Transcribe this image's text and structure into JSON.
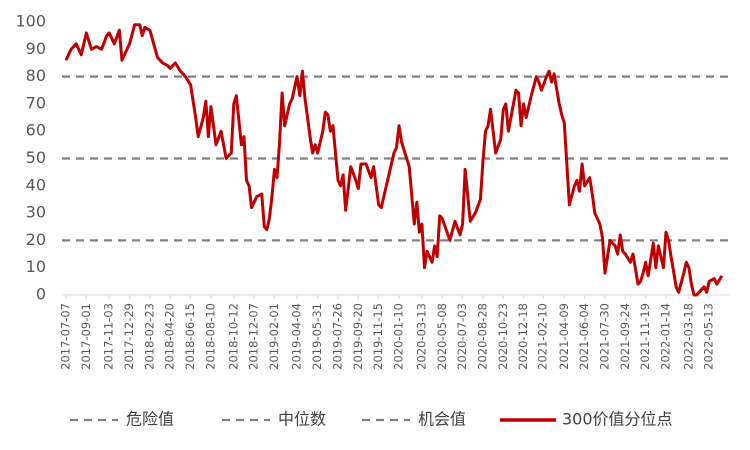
{
  "chart_data": {
    "type": "line",
    "x": [
      "2017-07-07",
      "2017-07-21",
      "2017-08-04",
      "2017-08-18",
      "2017-09-01",
      "2017-09-15",
      "2017-09-29",
      "2017-10-13",
      "2017-10-27",
      "2017-11-03",
      "2017-11-17",
      "2017-12-01",
      "2017-12-08",
      "2017-12-29",
      "2018-01-12",
      "2018-01-26",
      "2018-02-02",
      "2018-02-09",
      "2018-02-23",
      "2018-03-16",
      "2018-03-30",
      "2018-04-13",
      "2018-04-20",
      "2018-05-04",
      "2018-05-18",
      "2018-06-01",
      "2018-06-15",
      "2018-06-29",
      "2018-07-06",
      "2018-07-20",
      "2018-07-27",
      "2018-08-03",
      "2018-08-10",
      "2018-08-24",
      "2018-09-07",
      "2018-09-21",
      "2018-10-05",
      "2018-10-12",
      "2018-10-19",
      "2018-11-02",
      "2018-11-09",
      "2018-11-16",
      "2018-11-23",
      "2018-11-30",
      "2018-12-14",
      "2018-12-28",
      "2019-01-04",
      "2019-01-11",
      "2019-01-18",
      "2019-01-25",
      "2019-02-01",
      "2019-02-08",
      "2019-02-15",
      "2019-02-22",
      "2019-03-01",
      "2019-03-15",
      "2019-03-22",
      "2019-04-04",
      "2019-04-12",
      "2019-04-19",
      "2019-04-26",
      "2019-05-10",
      "2019-05-17",
      "2019-05-24",
      "2019-05-31",
      "2019-06-14",
      "2019-06-21",
      "2019-06-28",
      "2019-07-05",
      "2019-07-12",
      "2019-07-26",
      "2019-08-02",
      "2019-08-09",
      "2019-08-16",
      "2019-08-30",
      "2019-09-13",
      "2019-09-20",
      "2019-09-27",
      "2019-10-11",
      "2019-10-25",
      "2019-11-01",
      "2019-11-15",
      "2019-11-22",
      "2019-11-29",
      "2019-12-13",
      "2019-12-27",
      "2020-01-03",
      "2020-01-10",
      "2020-01-17",
      "2020-02-07",
      "2020-02-21",
      "2020-02-28",
      "2020-03-06",
      "2020-03-13",
      "2020-03-20",
      "2020-03-27",
      "2020-04-10",
      "2020-04-17",
      "2020-04-24",
      "2020-05-01",
      "2020-05-08",
      "2020-05-29",
      "2020-06-12",
      "2020-06-26",
      "2020-07-03",
      "2020-07-10",
      "2020-07-24",
      "2020-08-07",
      "2020-08-21",
      "2020-08-28",
      "2020-09-04",
      "2020-09-11",
      "2020-09-18",
      "2020-10-02",
      "2020-10-16",
      "2020-10-23",
      "2020-10-30",
      "2020-11-06",
      "2020-11-27",
      "2020-12-04",
      "2020-12-11",
      "2020-12-18",
      "2020-12-25",
      "2021-01-08",
      "2021-01-22",
      "2021-01-29",
      "2021-02-05",
      "2021-02-19",
      "2021-02-26",
      "2021-03-05",
      "2021-03-12",
      "2021-03-26",
      "2021-04-02",
      "2021-04-09",
      "2021-04-23",
      "2021-05-07",
      "2021-05-14",
      "2021-05-21",
      "2021-05-28",
      "2021-06-04",
      "2021-06-18",
      "2021-06-25",
      "2021-07-02",
      "2021-07-16",
      "2021-07-23",
      "2021-07-30",
      "2021-08-06",
      "2021-08-13",
      "2021-08-27",
      "2021-09-03",
      "2021-09-10",
      "2021-09-17",
      "2021-09-24",
      "2021-10-08",
      "2021-10-15",
      "2021-10-29",
      "2021-11-05",
      "2021-11-12",
      "2021-11-19",
      "2021-11-26",
      "2021-12-03",
      "2021-12-10",
      "2021-12-17",
      "2021-12-24",
      "2022-01-07",
      "2022-01-14",
      "2022-01-21",
      "2022-01-28",
      "2022-02-11",
      "2022-02-18",
      "2022-03-04",
      "2022-03-11",
      "2022-03-18",
      "2022-03-25",
      "2022-04-01",
      "2022-04-08",
      "2022-04-22",
      "2022-04-29",
      "2022-05-06",
      "2022-05-13",
      "2022-05-27",
      "2022-06-03",
      "2022-06-17"
    ],
    "series": [
      {
        "name": "300价值分位点",
        "color": "#c00000",
        "values": [
          86,
          90,
          92,
          88,
          96,
          90,
          91,
          90,
          95,
          96,
          92,
          97,
          86,
          92,
          99,
          99,
          95,
          98,
          97,
          87,
          85,
          84,
          83,
          85,
          82,
          80,
          77,
          65,
          58,
          65,
          71,
          58,
          69,
          55,
          60,
          50,
          52,
          70,
          73,
          55,
          58,
          42,
          40,
          32,
          36,
          37,
          25,
          24,
          28,
          36,
          46,
          43,
          56,
          74,
          62,
          70,
          72,
          80,
          73,
          82,
          72,
          58,
          52,
          55,
          52,
          60,
          67,
          66,
          60,
          62,
          42,
          40,
          44,
          31,
          47,
          42,
          39,
          48,
          48,
          43,
          47,
          33,
          32,
          36,
          44,
          52,
          54,
          62,
          56,
          47,
          26,
          34,
          23,
          26,
          10,
          16,
          12,
          18,
          14,
          29,
          28,
          20,
          27,
          22,
          26,
          46,
          27,
          30,
          35,
          49,
          60,
          62,
          68,
          52,
          57,
          68,
          70,
          60,
          75,
          74,
          62,
          70,
          65,
          73,
          80,
          78,
          75,
          80,
          82,
          78,
          81,
          70,
          66,
          63,
          33,
          40,
          42,
          38,
          48,
          40,
          43,
          37,
          30,
          26,
          21,
          8,
          14,
          20,
          18,
          15,
          22,
          16,
          15,
          12,
          15,
          4,
          5,
          8,
          12,
          7,
          13,
          19,
          10,
          18,
          10,
          23,
          20,
          14,
          3,
          1,
          8,
          12,
          10,
          4,
          0,
          0,
          2,
          3,
          1,
          5,
          6,
          4,
          7
        ]
      }
    ],
    "reference_lines": [
      {
        "name": "危险值",
        "value": 80,
        "color": "#808080"
      },
      {
        "name": "中位数",
        "value": 50,
        "color": "#808080"
      },
      {
        "name": "机会值",
        "value": 20,
        "color": "#808080"
      }
    ],
    "xlim": [
      "2017-07-07",
      "2022-07-01"
    ],
    "xticks": [
      "2017-07-07",
      "2017-09-01",
      "2017-11-03",
      "2017-12-29",
      "2018-02-23",
      "2018-04-20",
      "2018-06-15",
      "2018-08-10",
      "2018-10-12",
      "2018-12-07",
      "2019-02-01",
      "2019-04-04",
      "2019-05-31",
      "2019-07-26",
      "2019-09-20",
      "2019-11-15",
      "2020-01-10",
      "2020-03-13",
      "2020-05-08",
      "2020-07-03",
      "2020-08-28",
      "2020-10-23",
      "2020-12-18",
      "2021-02-10",
      "2021-04-09",
      "2021-06-04",
      "2021-07-30",
      "2021-09-24",
      "2021-11-19",
      "2022-01-14",
      "2022-03-18",
      "2022-05-13"
    ],
    "ylim": [
      0,
      100
    ],
    "yticks": [
      0,
      10,
      20,
      30,
      40,
      50,
      60,
      70,
      80,
      90,
      100
    ]
  }
}
